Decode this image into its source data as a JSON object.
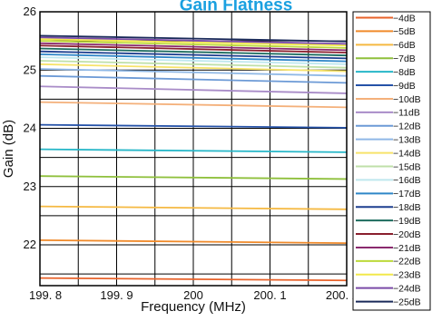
{
  "chart_data": {
    "type": "line",
    "title": "Gain Flatness",
    "xlabel": "Frequency (MHz)",
    "ylabel": "Gain (dB)",
    "xlim": [
      199.8,
      200.2
    ],
    "ylim": [
      21.3,
      26
    ],
    "x_ticks": [
      199.8,
      199.9,
      200,
      200.1,
      200.2
    ],
    "x_tick_labels": [
      "199. 8",
      "199. 9",
      "200",
      "200. 1",
      "200. 2"
    ],
    "y_ticks": [
      22,
      23,
      24,
      25,
      26
    ],
    "y_tick_labels": [
      "22",
      "23",
      "24",
      "25",
      "26"
    ],
    "grid": true,
    "legend_position": "right",
    "x": [
      199.8,
      200.2
    ],
    "series": [
      {
        "name": "−4dB",
        "color": "#e8622a",
        "values": [
          21.43,
          21.39
        ]
      },
      {
        "name": "−5dB",
        "color": "#f08a2a",
        "values": [
          22.08,
          22.03
        ]
      },
      {
        "name": "−6dB",
        "color": "#f5b942",
        "values": [
          22.66,
          22.61
        ]
      },
      {
        "name": "−7dB",
        "color": "#8fc03c",
        "values": [
          23.18,
          23.13
        ]
      },
      {
        "name": "−8dB",
        "color": "#27b7c8",
        "values": [
          23.64,
          23.59
        ]
      },
      {
        "name": "−9dB",
        "color": "#2552a8",
        "values": [
          24.06,
          24.01
        ]
      },
      {
        "name": "−10dB",
        "color": "#f4b07a",
        "values": [
          24.45,
          24.36
        ]
      },
      {
        "name": "−11dB",
        "color": "#a98cc8",
        "values": [
          24.72,
          24.6
        ]
      },
      {
        "name": "−12dB",
        "color": "#6c9ad6",
        "values": [
          24.9,
          24.78
        ]
      },
      {
        "name": "−13dB",
        "color": "#8fb8e6",
        "values": [
          25.02,
          24.9
        ]
      },
      {
        "name": "−14dB",
        "color": "#f7e36a",
        "values": [
          25.1,
          24.98
        ]
      },
      {
        "name": "−15dB",
        "color": "#bfe0a8",
        "values": [
          25.16,
          25.04
        ]
      },
      {
        "name": "−16dB",
        "color": "#bfe8ee",
        "values": [
          25.22,
          25.1
        ]
      },
      {
        "name": "−17dB",
        "color": "#2e86c8",
        "values": [
          25.27,
          25.15
        ]
      },
      {
        "name": "−18dB",
        "color": "#1d3f8f",
        "values": [
          25.32,
          25.2
        ]
      },
      {
        "name": "−19dB",
        "color": "#1b6b5e",
        "values": [
          25.37,
          25.25
        ]
      },
      {
        "name": "−20dB",
        "color": "#8a1f2d",
        "values": [
          25.42,
          25.3
        ]
      },
      {
        "name": "−21dB",
        "color": "#8a2a6e",
        "values": [
          25.46,
          25.34
        ]
      },
      {
        "name": "−22dB",
        "color": "#bcd93a",
        "values": [
          25.5,
          25.38
        ]
      },
      {
        "name": "−23dB",
        "color": "#f2e84a",
        "values": [
          25.53,
          25.42
        ]
      },
      {
        "name": "−24dB",
        "color": "#7a4aa8",
        "values": [
          25.56,
          25.45
        ]
      },
      {
        "name": "−25dB",
        "color": "#1a2a5a",
        "values": [
          25.59,
          25.49
        ]
      }
    ]
  }
}
